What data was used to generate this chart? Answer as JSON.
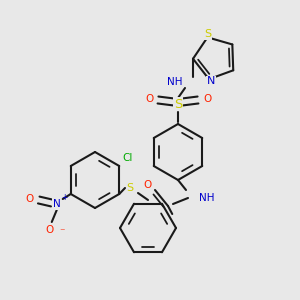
{
  "bg_color": "#e8e8e8",
  "bond_color": "#1a1a1a",
  "atom_colors": {
    "S": "#cccc00",
    "N": "#0000cc",
    "O": "#ff2200",
    "Cl": "#00aa00",
    "H": "#888888"
  },
  "bond_width": 1.5,
  "font_size": 7.5
}
